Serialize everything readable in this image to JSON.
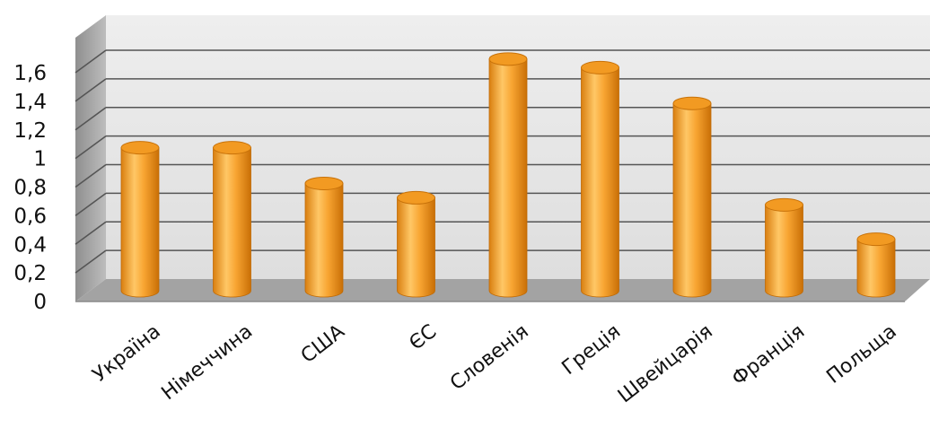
{
  "chart_data": {
    "type": "bar",
    "style": "3d-cylinder",
    "categories": [
      "Україна",
      "Німеччина",
      "США",
      "ЄС",
      "Словенія",
      "Греція",
      "Швейцарія",
      "Франція",
      "Польща"
    ],
    "series": [
      {
        "values": [
          1.0,
          1.0,
          0.75,
          0.65,
          1.62,
          1.56,
          1.31,
          0.6,
          0.36
        ]
      }
    ],
    "ylim": [
      0,
      1.6
    ],
    "yticks": [
      "0",
      "0,2",
      "0,4",
      "0,6",
      "0,8",
      "1",
      "1,2",
      "1,4",
      "1,6"
    ],
    "grid": true,
    "legend": "none",
    "colors": {
      "bar_body": "#f5a332",
      "bar_light": "#ffd27a",
      "bar_dark": "#d77a0c",
      "wall": "#e6e6e6",
      "side_wall": "#a6a6a6",
      "floor": "#a0a0a0",
      "gridline": "#555555"
    }
  }
}
